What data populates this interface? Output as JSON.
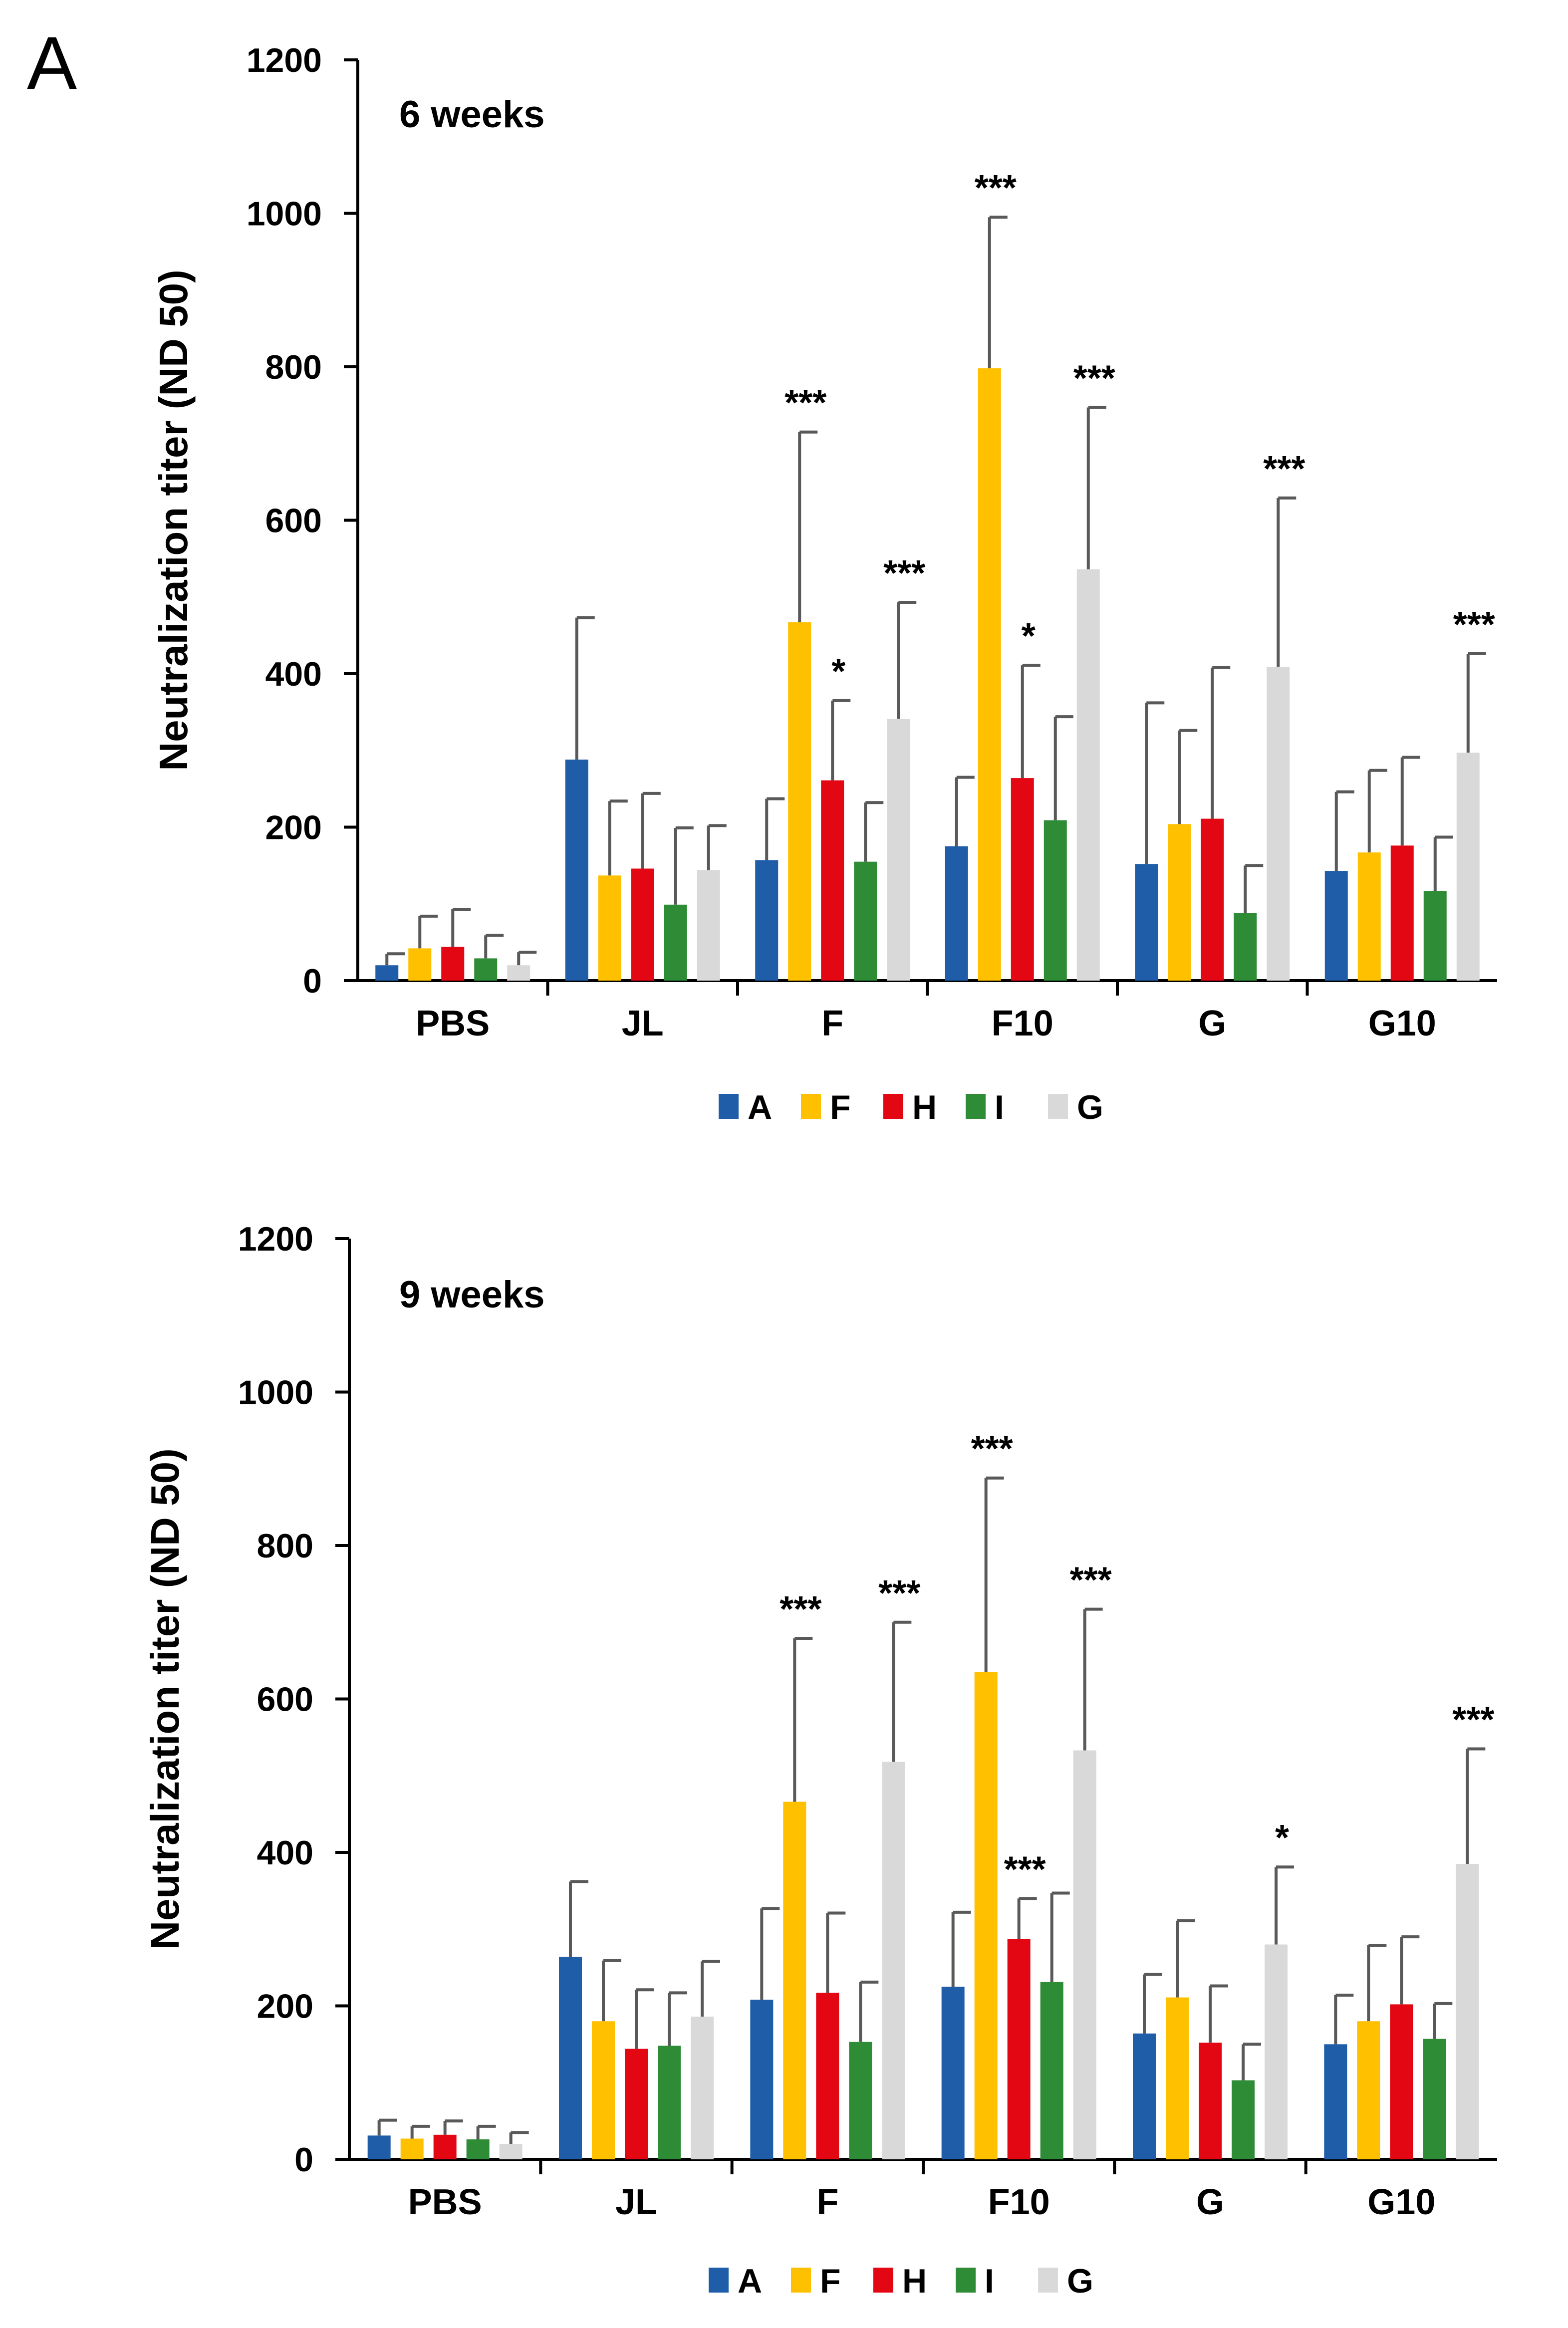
{
  "panel_label": "A",
  "chart_data": [
    {
      "type": "bar",
      "title": "6 weeks",
      "ylabel": "Neutralization titer (ND 50)",
      "xlabel": "",
      "ylim": [
        0,
        1200
      ],
      "yticks": [
        "0",
        "200",
        "400",
        "600",
        "800",
        "1000",
        "1200"
      ],
      "categories": [
        "PBS",
        "JL",
        "F",
        "F10",
        "G",
        "G10"
      ],
      "legend_position": "bottom",
      "series": [
        {
          "name": "A",
          "color": "#1F5DA8",
          "values": [
            20,
            288,
            157,
            175,
            152,
            143
          ],
          "errors": [
            15,
            185,
            80,
            90,
            210,
            103
          ],
          "stars": [
            "",
            "",
            "",
            "",
            "",
            ""
          ]
        },
        {
          "name": "F",
          "color": "#FFC000",
          "values": [
            42,
            137,
            467,
            798,
            204,
            167
          ],
          "errors": [
            42,
            97,
            248,
            197,
            122,
            107
          ],
          "stars": [
            "",
            "",
            "***",
            "***",
            "",
            ""
          ]
        },
        {
          "name": "H",
          "color": "#E30613",
          "values": [
            44,
            146,
            261,
            264,
            211,
            176
          ],
          "errors": [
            49,
            98,
            104,
            147,
            197,
            115
          ],
          "stars": [
            "",
            "",
            "*",
            "*",
            "",
            ""
          ]
        },
        {
          "name": "I",
          "color": "#2E8B36",
          "values": [
            29,
            99,
            155,
            209,
            88,
            117
          ],
          "errors": [
            30,
            100,
            77,
            135,
            62,
            70
          ],
          "stars": [
            "",
            "",
            "",
            "",
            "",
            ""
          ]
        },
        {
          "name": "G",
          "color": "#D9D9D9",
          "values": [
            20,
            144,
            341,
            536,
            409,
            297
          ],
          "errors": [
            17,
            58,
            152,
            211,
            220,
            129
          ],
          "stars": [
            "",
            "",
            "***",
            "***",
            "***",
            "***"
          ]
        }
      ]
    },
    {
      "type": "bar",
      "title": "9 weeks",
      "ylabel": "Neutralization titer (ND 50)",
      "xlabel": "",
      "ylim": [
        0,
        1200
      ],
      "yticks": [
        "0",
        "200",
        "400",
        "600",
        "800",
        "1000",
        "1200"
      ],
      "categories": [
        "PBS",
        "JL",
        "F",
        "F10",
        "G",
        "G10"
      ],
      "legend_position": "bottom",
      "series": [
        {
          "name": "A",
          "color": "#1F5DA8",
          "values": [
            31,
            264,
            208,
            225,
            164,
            150
          ],
          "errors": [
            20,
            98,
            119,
            97,
            77,
            64
          ],
          "stars": [
            "",
            "",
            "",
            "",
            "",
            ""
          ]
        },
        {
          "name": "F",
          "color": "#FFC000",
          "values": [
            27,
            180,
            466,
            635,
            211,
            180
          ],
          "errors": [
            16,
            79,
            213,
            253,
            100,
            99
          ],
          "stars": [
            "",
            "",
            "***",
            "***",
            "",
            ""
          ]
        },
        {
          "name": "H",
          "color": "#E30613",
          "values": [
            32,
            144,
            217,
            287,
            152,
            202
          ],
          "errors": [
            18,
            77,
            104,
            53,
            74,
            88
          ],
          "stars": [
            "",
            "",
            "",
            "***",
            "",
            ""
          ]
        },
        {
          "name": "I",
          "color": "#2E8B36",
          "values": [
            26,
            148,
            153,
            231,
            103,
            157
          ],
          "errors": [
            17,
            69,
            78,
            116,
            47,
            46
          ],
          "stars": [
            "",
            "",
            "",
            "",
            "",
            ""
          ]
        },
        {
          "name": "G",
          "color": "#D9D9D9",
          "values": [
            20,
            186,
            518,
            533,
            280,
            385
          ],
          "errors": [
            15,
            72,
            182,
            184,
            101,
            150
          ],
          "stars": [
            "",
            "",
            "***",
            "***",
            "*",
            "***"
          ]
        }
      ]
    }
  ]
}
